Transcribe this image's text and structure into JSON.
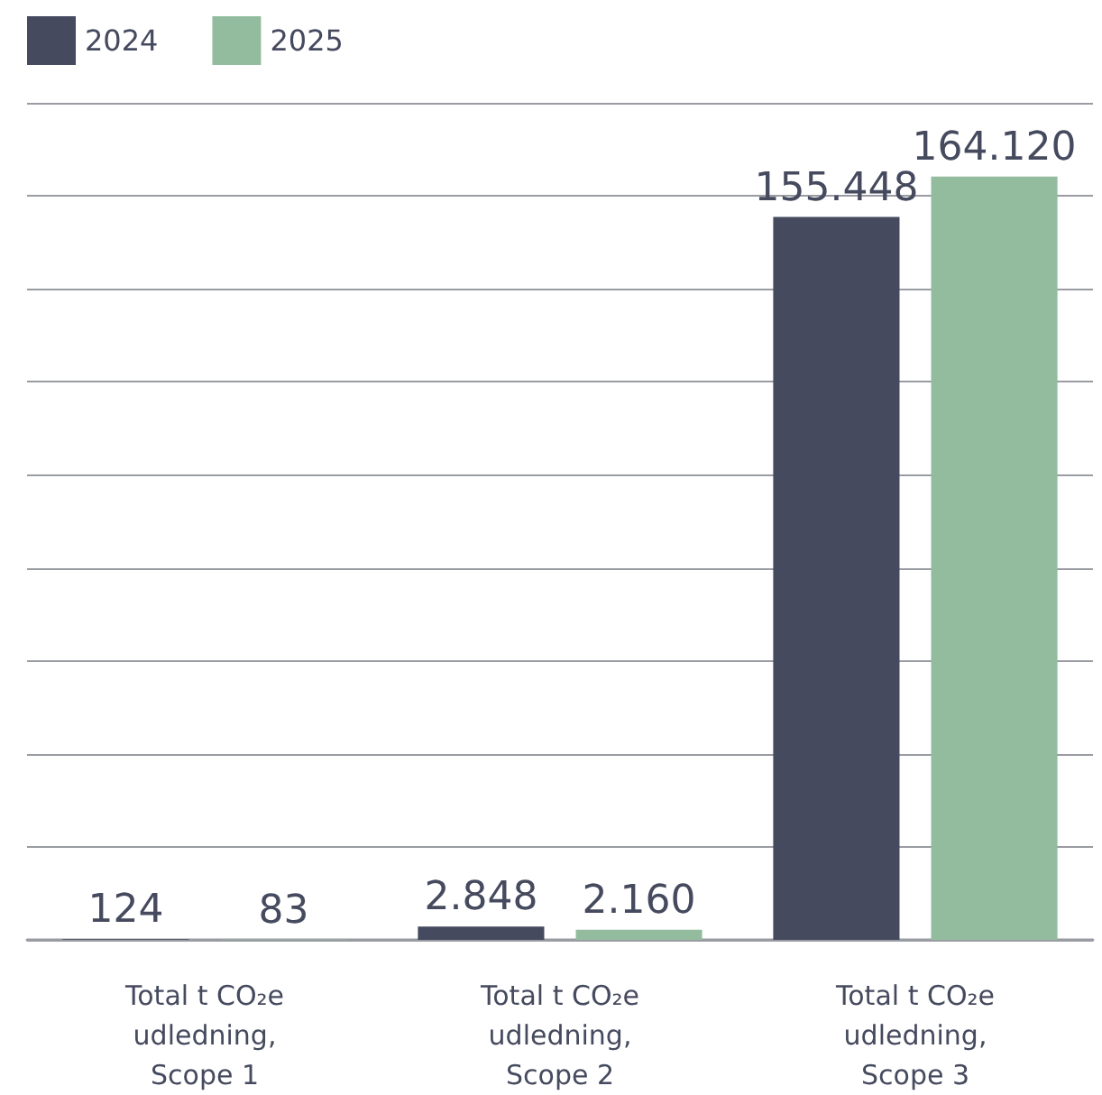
{
  "chart_data": {
    "type": "bar",
    "categories": [
      "Total t CO₂e\nudledning,\nScope 1",
      "Total t CO₂e\nudledning,\nScope 2",
      "Total t CO₂e\nudledning,\nScope 3"
    ],
    "series": [
      {
        "name": "2024",
        "color": "#454a5e",
        "values": [
          124,
          2848,
          155448
        ],
        "value_labels": [
          "124",
          "2.848",
          "155.448"
        ]
      },
      {
        "name": "2025",
        "color": "#93bc9f",
        "values": [
          83,
          2160,
          164120
        ],
        "value_labels": [
          "83",
          "2.160",
          "164.120"
        ]
      }
    ],
    "ylim": [
      0,
      180000
    ],
    "yticks": [
      {
        "value": 0,
        "label": null
      },
      {
        "value": 20000,
        "label": null
      },
      {
        "value": 40000,
        "label": null
      },
      {
        "value": 60000,
        "label": null
      },
      {
        "value": 80000,
        "label": null
      },
      {
        "value": 100000,
        "label": null
      },
      {
        "value": 120000,
        "label": null
      },
      {
        "value": 140000,
        "label": null
      },
      {
        "value": 160000,
        "label": null
      },
      {
        "value": 180000,
        "label": null
      }
    ],
    "grid": "y",
    "legend": "top left",
    "tick_labels": "x"
  }
}
